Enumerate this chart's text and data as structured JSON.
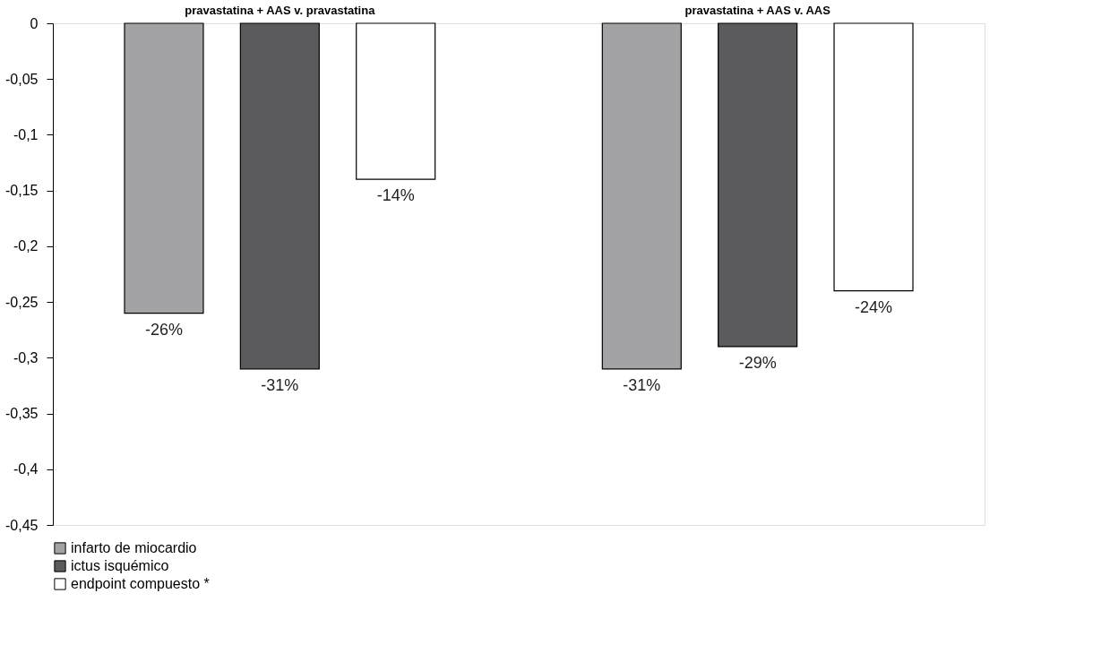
{
  "chart_data": {
    "type": "bar",
    "categories": [
      "pravastatina + AAS  v. pravastatina",
      "pravastatina + AAS  v. AAS"
    ],
    "series": [
      {
        "name": "infarto de miocardio",
        "color": "#a3a3a5",
        "values": [
          -0.26,
          -0.31
        ],
        "value_labels": [
          "-26%",
          "-31%"
        ]
      },
      {
        "name": "ictus isquémico",
        "color": "#5b5b5d",
        "values": [
          -0.31,
          -0.29
        ],
        "value_labels": [
          "-31%",
          "-29%"
        ]
      },
      {
        "name": "endpoint compuesto *",
        "color": "#ffffff",
        "values": [
          -0.14,
          -0.24
        ],
        "value_labels": [
          "-14%",
          "-24%"
        ]
      }
    ],
    "ylim": [
      -0.45,
      0
    ],
    "yticks": [
      0,
      {
        "value": -0.05,
        "label": "-0,05"
      },
      {
        "value": -0.1,
        "label": "-0,1"
      },
      {
        "value": -0.15,
        "label": "-0,15"
      },
      {
        "value": -0.2,
        "label": "-0,2"
      },
      {
        "value": -0.25,
        "label": "-0,25"
      },
      {
        "value": -0.3,
        "label": "-0,3"
      },
      {
        "value": -0.35,
        "label": "-0,35"
      },
      {
        "value": -0.4,
        "label": "-0,4"
      },
      {
        "value": -0.45,
        "label": "-0,45"
      }
    ],
    "grid": false,
    "legend": "bottom"
  }
}
